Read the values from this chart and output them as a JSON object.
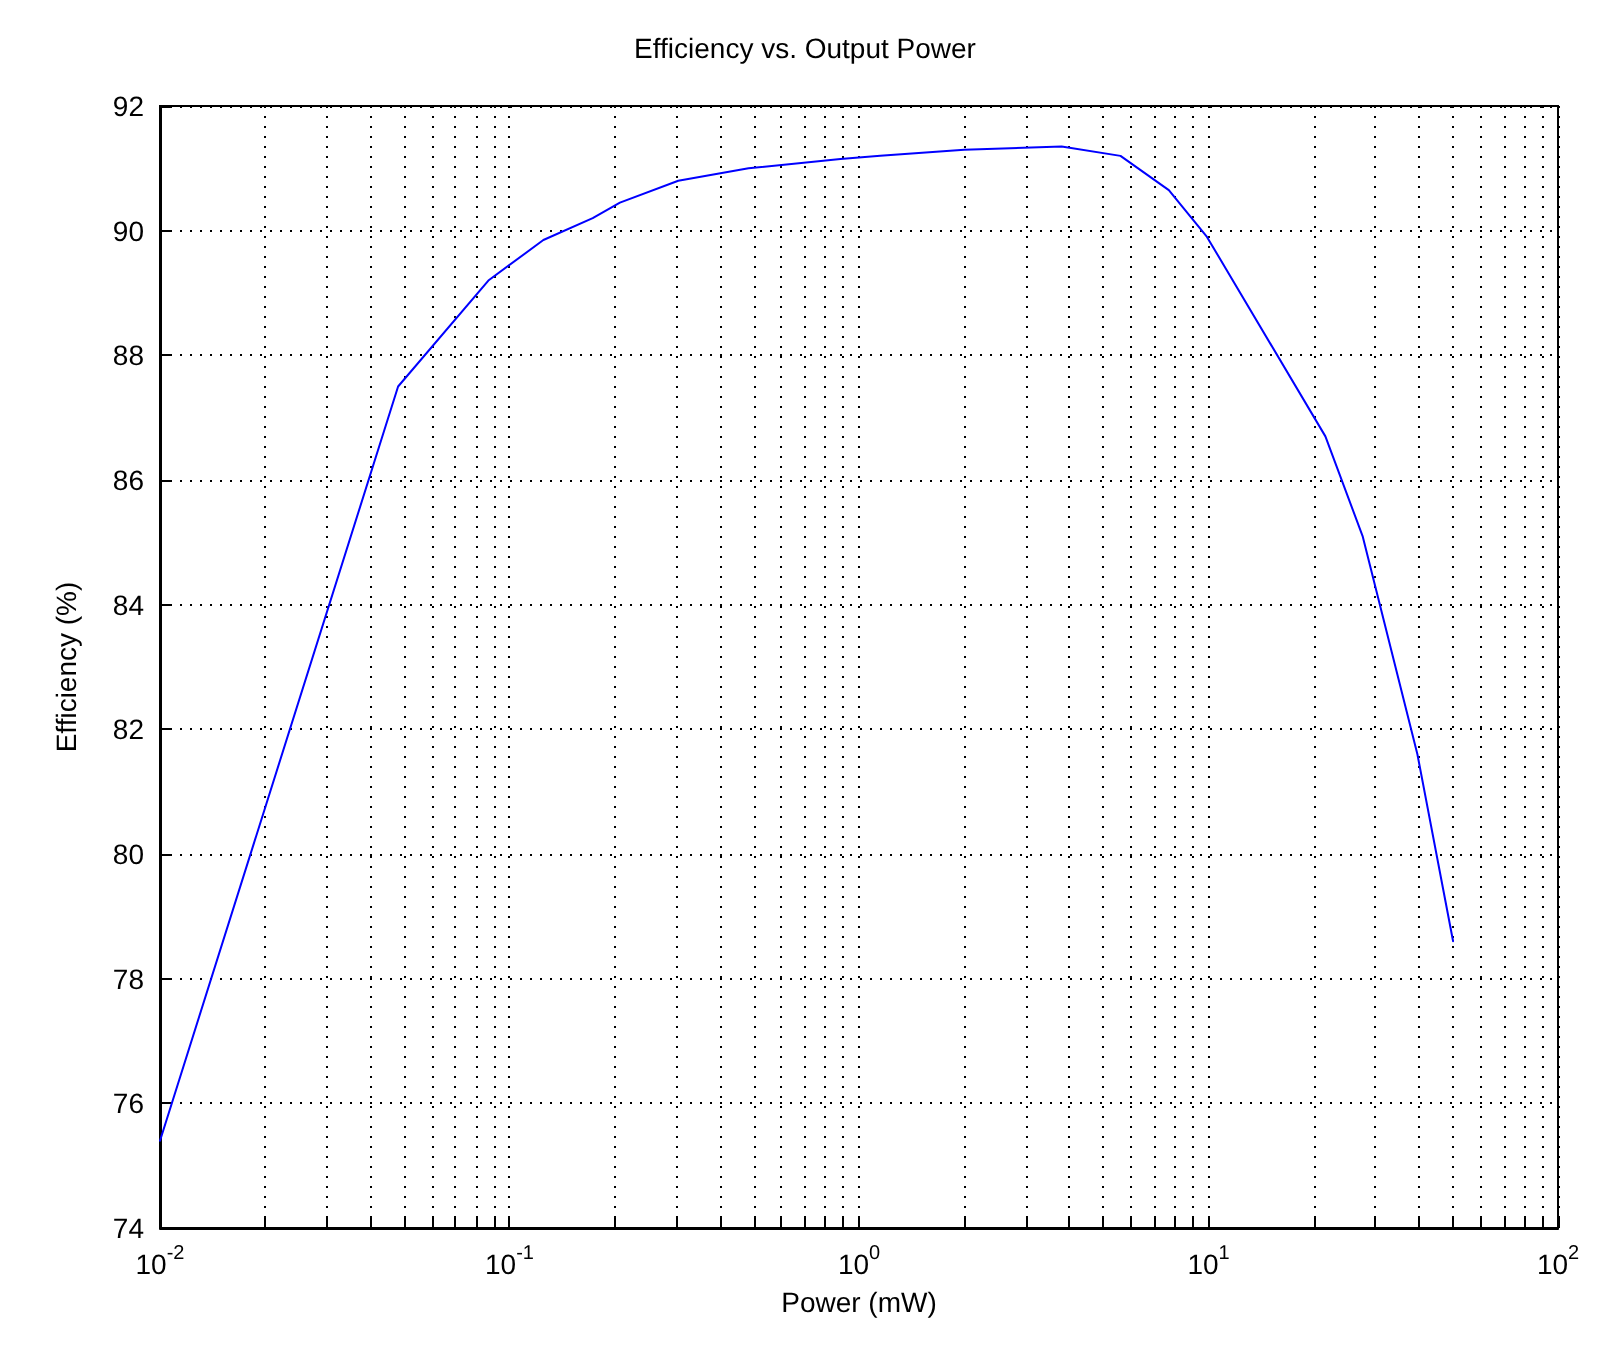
{
  "chart_data": {
    "type": "line",
    "title": "Efficiency vs. Output Power",
    "xlabel": "Power (mW)",
    "ylabel": "Efficiency (%)",
    "log": "x",
    "grid": true,
    "marker": "none",
    "line_style": "solid",
    "xlim": [
      0.01,
      100
    ],
    "ylim": [
      74,
      92
    ],
    "xticks": [
      {
        "value": 0.01,
        "label": "10$^{-2}$"
      },
      {
        "value": 0.02,
        "label": null
      },
      {
        "value": 0.03,
        "label": null
      },
      {
        "value": 0.04,
        "label": null
      },
      {
        "value": 0.05,
        "label": null
      },
      {
        "value": 0.06,
        "label": null
      },
      {
        "value": 0.07,
        "label": null
      },
      {
        "value": 0.08,
        "label": null
      },
      {
        "value": 0.09,
        "label": null
      },
      {
        "value": 0.1,
        "label": "10$^{-1}$"
      },
      {
        "value": 0.2,
        "label": null
      },
      {
        "value": 0.3,
        "label": null
      },
      {
        "value": 0.4,
        "label": null
      },
      {
        "value": 0.5,
        "label": null
      },
      {
        "value": 0.6,
        "label": null
      },
      {
        "value": 0.7,
        "label": null
      },
      {
        "value": 0.8,
        "label": null
      },
      {
        "value": 0.9,
        "label": null
      },
      {
        "value": 1,
        "label": "10$^{0}$"
      },
      {
        "value": 2,
        "label": null
      },
      {
        "value": 3,
        "label": null
      },
      {
        "value": 4,
        "label": null
      },
      {
        "value": 5,
        "label": null
      },
      {
        "value": 6,
        "label": null
      },
      {
        "value": 7,
        "label": null
      },
      {
        "value": 8,
        "label": null
      },
      {
        "value": 9,
        "label": null
      },
      {
        "value": 10,
        "label": "10$^{1}$"
      },
      {
        "value": 20,
        "label": null
      },
      {
        "value": 30,
        "label": null
      },
      {
        "value": 40,
        "label": null
      },
      {
        "value": 50,
        "label": null
      },
      {
        "value": 60,
        "label": null
      },
      {
        "value": 70,
        "label": null
      },
      {
        "value": 80,
        "label": null
      },
      {
        "value": 90,
        "label": null
      },
      {
        "value": 100,
        "label": "10$^{2}$"
      }
    ],
    "yticks": [
      74,
      76,
      78,
      80,
      82,
      84,
      86,
      88,
      90,
      92
    ],
    "series": [
      {
        "color": "#0000ff",
        "x": [
          0.01,
          0.048,
          0.087,
          0.125,
          0.173,
          0.207,
          0.304,
          0.483,
          0.885,
          1.15,
          2.0,
          3.8,
          5.6,
          7.7,
          9.9,
          21.6,
          27.6,
          39.6,
          50.1
        ],
        "values": [
          75.4,
          87.5,
          89.2,
          89.85,
          90.2,
          90.45,
          90.8,
          91.0,
          91.15,
          91.2,
          91.3,
          91.35,
          91.2,
          90.65,
          89.9,
          86.7,
          85.1,
          81.6,
          78.6
        ]
      }
    ]
  }
}
